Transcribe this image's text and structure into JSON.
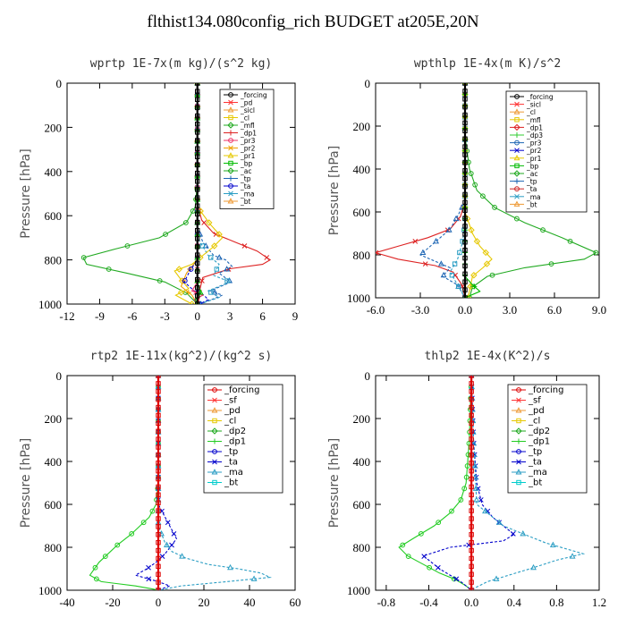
{
  "title": "flthist134.080config_rich  BUDGET at205E,20N",
  "chart_data": [
    {
      "type": "line",
      "title": "wprtp   1E-7x(m kg)/(s^2 kg)",
      "xlabel": "",
      "ylabel": "Pressure [hPa]",
      "xlim": [
        -12,
        9
      ],
      "ylim": [
        1000,
        0
      ],
      "xticks": [
        "-12",
        "-9",
        "-6",
        "-3",
        "0",
        "3",
        "6",
        "9"
      ],
      "yticks": [
        "0",
        "200",
        "400",
        "600",
        "800",
        "1000"
      ],
      "legend": [
        "_forcing",
        "_pd",
        "_sicl",
        "_cl",
        "_mfl",
        "_dp1",
        "_pr3",
        "_pr2",
        "_pr1",
        "_bp",
        "_ac",
        "_tp",
        "_ta",
        "_ma",
        "_bt"
      ],
      "series": [
        {
          "name": "_ac",
          "color": "#22aa22",
          "x": [
            0,
            0,
            -0.2,
            -1.0,
            -3.5,
            -7.5,
            -10.5,
            -10.2,
            -6.5,
            -3.0,
            -1.0,
            0
          ],
          "y": [
            0,
            450,
            560,
            630,
            700,
            750,
            790,
            820,
            860,
            900,
            950,
            1000
          ]
        },
        {
          "name": "_dp1",
          "color": "#dd2222",
          "x": [
            0,
            0,
            0.4,
            1.5,
            3.5,
            5.5,
            6.7,
            6.0,
            3.0,
            0.5,
            0.2,
            0.1
          ],
          "y": [
            0,
            550,
            620,
            680,
            720,
            760,
            800,
            820,
            840,
            880,
            940,
            1000
          ]
        },
        {
          "name": "_tp",
          "color": "#1e66b4",
          "x": [
            0,
            0,
            0.5,
            1.5,
            2.6,
            3.2,
            2.0,
            3.1,
            1.2,
            2.3,
            0.3
          ],
          "y": [
            0,
            650,
            720,
            780,
            800,
            830,
            860,
            900,
            940,
            960,
            1000
          ]
        },
        {
          "name": "_ma",
          "color": "#2c9ec4",
          "x": [
            0,
            0,
            1.0,
            2.0,
            1.5,
            3.0,
            1.0,
            2.0,
            0.2
          ],
          "y": [
            0,
            700,
            780,
            820,
            870,
            900,
            940,
            970,
            1000
          ]
        },
        {
          "name": "_pr1",
          "color": "#e6c800",
          "x": [
            0,
            0,
            1.2,
            2.3,
            1.5,
            -0.5,
            -2.1,
            -1.5,
            -0.8,
            -2.0,
            -0.5
          ],
          "y": [
            0,
            560,
            640,
            700,
            740,
            820,
            850,
            890,
            930,
            960,
            1000
          ]
        },
        {
          "name": "_pr2",
          "color": "#f0a000",
          "x": [
            0,
            0,
            -1.0,
            -1.5,
            -0.5,
            0
          ],
          "y": [
            0,
            800,
            860,
            920,
            960,
            1000
          ]
        },
        {
          "name": "_ta",
          "color": "#0000cc",
          "x": [
            0,
            0,
            -0.7,
            -1.2,
            -0.3,
            0.6,
            1.0,
            0.2
          ],
          "y": [
            0,
            800,
            850,
            900,
            940,
            960,
            980,
            1000
          ]
        },
        {
          "name": "_pr3",
          "color": "#ee3366",
          "x": [
            0,
            0,
            -0.5,
            0.5,
            -0.3,
            0
          ],
          "y": [
            0,
            900,
            940,
            960,
            980,
            1000
          ]
        },
        {
          "name": "_bp",
          "color": "#00bb00",
          "x": [
            0,
            0,
            0.3,
            -0.2,
            0
          ],
          "y": [
            0,
            900,
            950,
            980,
            1000
          ]
        },
        {
          "name": "_forcing",
          "color": "#000000",
          "x": [
            0,
            0
          ],
          "y": [
            0,
            1000
          ]
        }
      ]
    },
    {
      "type": "line",
      "title": "wpthlp   1E-4x(m K)/s^2",
      "xlabel": "",
      "ylabel": "Pressure [hPa]",
      "xlim": [
        -6.0,
        9.0
      ],
      "ylim": [
        1000,
        0
      ],
      "xticks": [
        "-6.0",
        "-3.0",
        "0.0",
        "3.0",
        "6.0",
        "9.0"
      ],
      "yticks": [
        "0",
        "200",
        "400",
        "600",
        "800",
        "1000"
      ],
      "legend": [
        "_forcing",
        "_sicl",
        "_cl",
        "_mfl",
        "_dp1",
        "_dp3",
        "_pr3",
        "_pr2",
        "_pr1",
        "_bp",
        "_ac",
        "_tp",
        "_ta",
        "_ma",
        "_bt"
      ],
      "series": [
        {
          "name": "_ac",
          "color": "#22aa22",
          "x": [
            0,
            0,
            0.3,
            0.8,
            2.0,
            4.0,
            6.5,
            8.8,
            8.0,
            4.0,
            1.5,
            0.5,
            0.3
          ],
          "y": [
            0,
            250,
            400,
            500,
            580,
            650,
            720,
            790,
            820,
            860,
            900,
            950,
            1000
          ]
        },
        {
          "name": "_dp1",
          "color": "#dd2222",
          "x": [
            0,
            0,
            -0.3,
            -1.0,
            -2.5,
            -4.5,
            -6.0,
            -4.5,
            -2.0,
            -0.8,
            -0.2,
            0
          ],
          "y": [
            0,
            550,
            620,
            680,
            720,
            760,
            790,
            820,
            850,
            880,
            940,
            1000
          ]
        },
        {
          "name": "_tp",
          "color": "#1e66b4",
          "x": [
            0,
            0,
            -0.5,
            -1.0,
            -2.0,
            -3.0,
            -2.0,
            -1.0,
            -1.5,
            -0.5,
            0
          ],
          "y": [
            0,
            550,
            620,
            680,
            740,
            800,
            830,
            860,
            900,
            940,
            1000
          ]
        },
        {
          "name": "_ma",
          "color": "#2c9ec4",
          "x": [
            0,
            0,
            -0.2,
            -0.5,
            -1.0,
            -0.5,
            0
          ],
          "y": [
            0,
            650,
            750,
            820,
            880,
            940,
            1000
          ]
        },
        {
          "name": "_pr1",
          "color": "#e6c800",
          "x": [
            0,
            0,
            0.5,
            1.0,
            1.8,
            1.2,
            0.5,
            0.2
          ],
          "y": [
            0,
            600,
            700,
            760,
            820,
            860,
            900,
            1000
          ]
        },
        {
          "name": "_bp",
          "color": "#00bb00",
          "x": [
            0,
            0,
            0.5,
            1.0,
            0
          ],
          "y": [
            0,
            900,
            940,
            970,
            1000
          ]
        },
        {
          "name": "_forcing",
          "color": "#000000",
          "x": [
            0,
            0
          ],
          "y": [
            0,
            1000
          ]
        }
      ]
    },
    {
      "type": "line",
      "title": "rtp2   1E-11x(kg^2)/(kg^2 s)",
      "xlabel": "",
      "ylabel": "Pressure [hPa]",
      "xlim": [
        -40,
        60
      ],
      "ylim": [
        1000,
        0
      ],
      "xticks": [
        "-40",
        "-20",
        "0",
        "20",
        "40",
        "60"
      ],
      "yticks": [
        "0",
        "200",
        "400",
        "600",
        "800",
        "1000"
      ],
      "legend": [
        "_forcing",
        "_sf",
        "_pd",
        "_cl",
        "_dp2",
        "_dp1",
        "_tp",
        "_ta",
        "_ma",
        "_bt"
      ],
      "series": [
        {
          "name": "_dp1",
          "color": "#22cc22",
          "x": [
            0,
            0,
            -1,
            -4,
            -8,
            -12,
            -18,
            -22,
            -26,
            -30,
            -25,
            -10,
            -2,
            0
          ],
          "y": [
            0,
            500,
            600,
            660,
            700,
            740,
            790,
            830,
            870,
            930,
            960,
            980,
            995,
            1000
          ]
        },
        {
          "name": "_tp",
          "color": "#0000cc",
          "x": [
            0,
            0,
            4,
            8,
            3,
            -1,
            -5,
            -10,
            0,
            5,
            0
          ],
          "y": [
            0,
            600,
            680,
            760,
            830,
            870,
            900,
            930,
            960,
            980,
            1000
          ]
        },
        {
          "name": "_ma",
          "color": "#2c9ec4",
          "x": [
            0,
            0,
            3,
            6,
            12,
            22,
            35,
            45,
            49,
            30,
            10,
            0
          ],
          "y": [
            0,
            700,
            780,
            820,
            850,
            880,
            900,
            920,
            940,
            960,
            980,
            1000
          ]
        },
        {
          "name": "_forcing",
          "color": "#dd0000",
          "x": [
            0,
            0
          ],
          "y": [
            0,
            1000
          ]
        }
      ]
    },
    {
      "type": "line",
      "title": "thlp2   1E-4x(K^2)/s",
      "xlabel": "",
      "ylabel": "Pressure [hPa]",
      "xlim": [
        -0.9,
        1.2
      ],
      "ylim": [
        1000,
        0
      ],
      "xticks": [
        "-0.8",
        "-0.4",
        "0.0",
        "0.4",
        "0.8",
        "1.2"
      ],
      "yticks": [
        "0",
        "200",
        "400",
        "600",
        "800",
        "1000"
      ],
      "legend": [
        "_forcing",
        "_sf",
        "_pd",
        "_cl",
        "_dp2",
        "_dp1",
        "_tp",
        "_ta",
        "_ma",
        "_bt"
      ],
      "series": [
        {
          "name": "_dp1",
          "color": "#22cc22",
          "x": [
            0,
            -0.02,
            -0.05,
            -0.1,
            -0.2,
            -0.35,
            -0.55,
            -0.68,
            -0.6,
            -0.45,
            -0.3,
            -0.15,
            -0.05,
            0
          ],
          "y": [
            0,
            300,
            500,
            580,
            640,
            700,
            760,
            800,
            840,
            880,
            920,
            950,
            980,
            1000
          ]
        },
        {
          "name": "_tp",
          "color": "#0000cc",
          "x": [
            0,
            0.02,
            0.05,
            0.1,
            0.2,
            0.3,
            0.4,
            0.3,
            -0.2,
            -0.45,
            -0.3,
            -0.1,
            0
          ],
          "y": [
            0,
            300,
            500,
            600,
            660,
            700,
            740,
            770,
            800,
            840,
            900,
            960,
            1000
          ]
        },
        {
          "name": "_ma",
          "color": "#2c9ec4",
          "x": [
            0,
            0.02,
            0.05,
            0.3,
            0.7,
            1.05,
            0.8,
            0.55,
            0.35,
            0.15,
            0.05,
            0
          ],
          "y": [
            0,
            300,
            600,
            700,
            780,
            830,
            860,
            900,
            930,
            960,
            985,
            1000
          ]
        },
        {
          "name": "_forcing",
          "color": "#dd0000",
          "x": [
            0,
            0
          ],
          "y": [
            0,
            1000
          ]
        }
      ]
    }
  ]
}
